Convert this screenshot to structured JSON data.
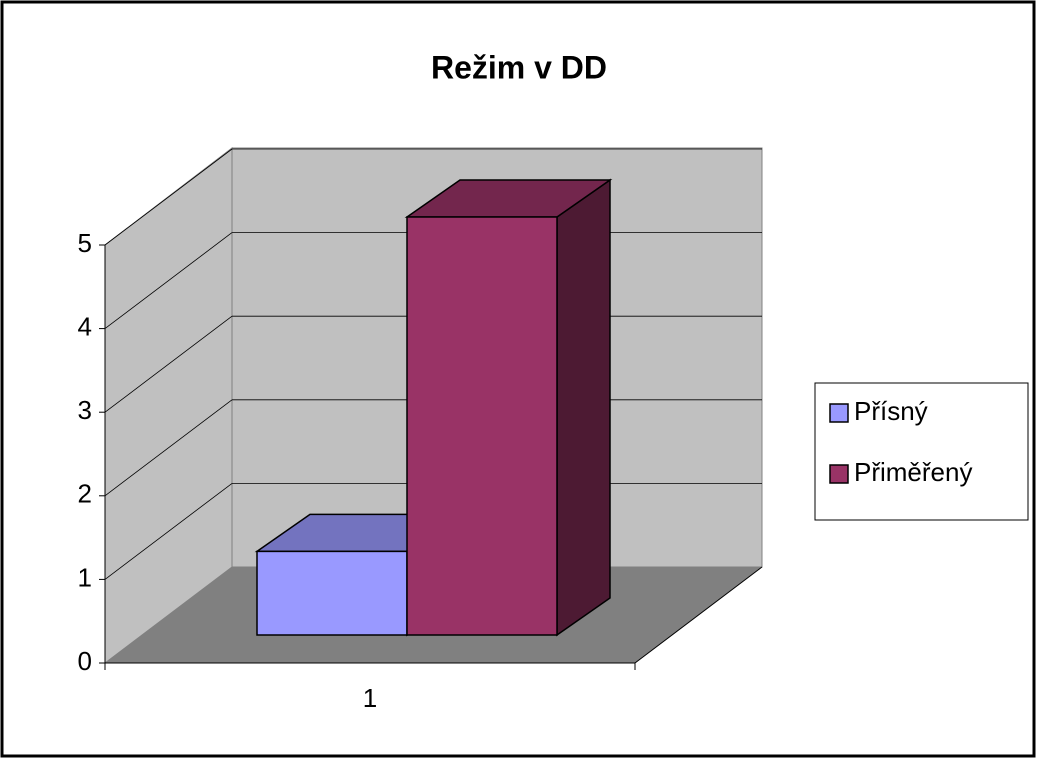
{
  "chart_data": {
    "type": "bar3d",
    "title": "Režim v DD",
    "categories": [
      "1"
    ],
    "series": [
      {
        "name": "Přísný",
        "color": "#9999ff",
        "values": [
          1
        ]
      },
      {
        "name": "Přiměřený",
        "color": "#993366",
        "values": [
          5
        ]
      }
    ],
    "ylim": [
      0,
      5
    ],
    "yticks": [
      0,
      1,
      2,
      3,
      4,
      5
    ],
    "grid": true,
    "legend": "right"
  }
}
